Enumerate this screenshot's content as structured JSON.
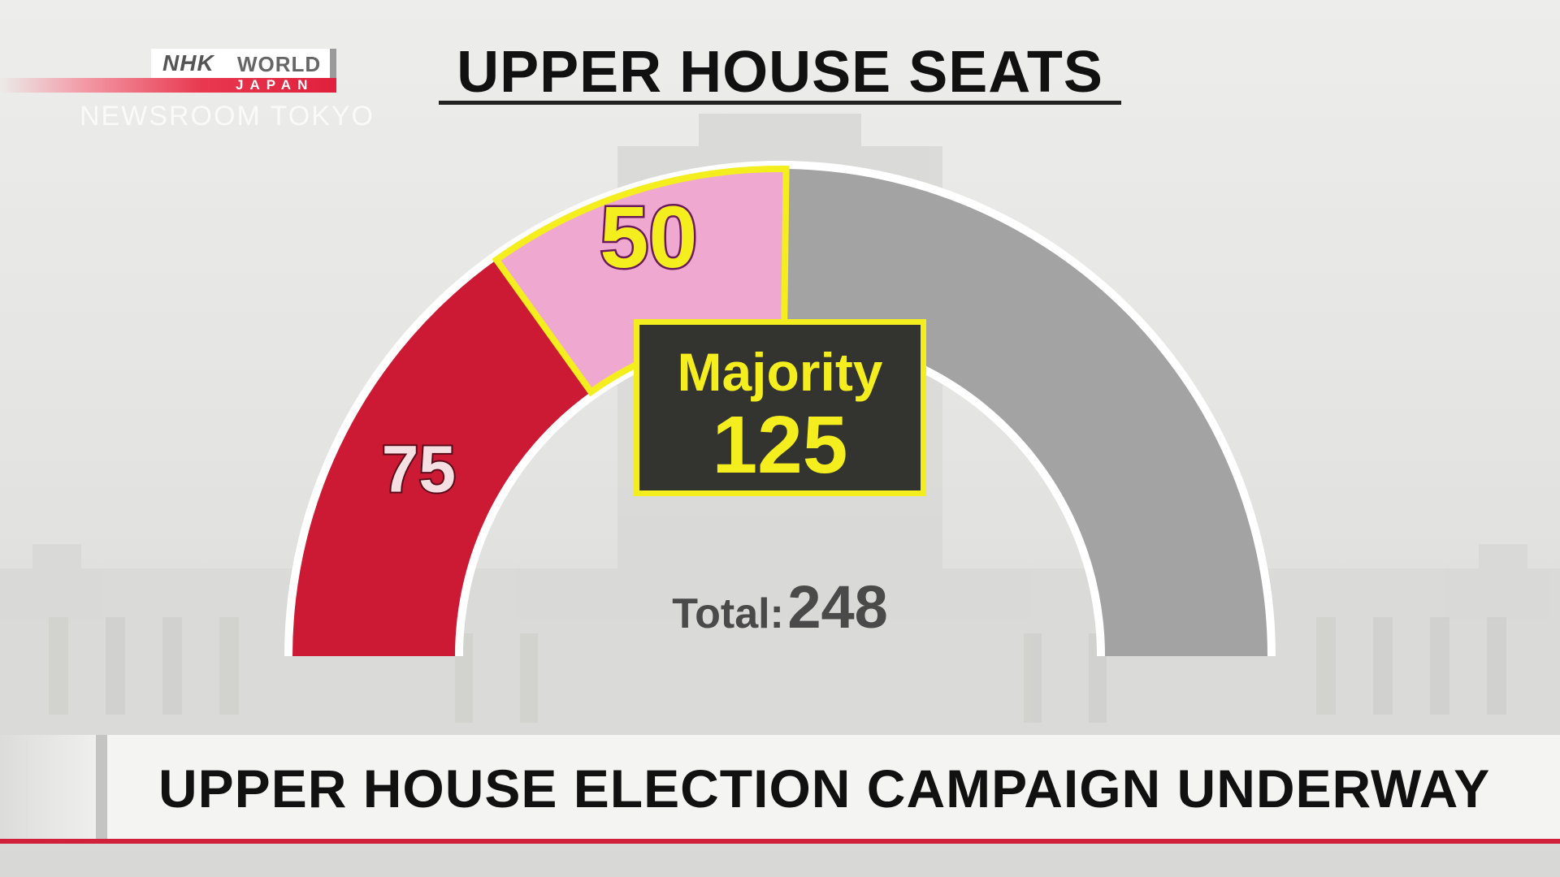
{
  "broadcaster": {
    "brand": "NHK",
    "world": "WORLD",
    "region": "JAPAN",
    "program": "NEWSROOM TOKYO"
  },
  "headline": "UPPER HOUSE ELECTION CAMPAIGN UNDERWAY",
  "colors": {
    "red": "#cc1a35",
    "pink": "#efa9d1",
    "gray": "#a3a3a3",
    "yellow": "#f5ee1e",
    "banner_rule": "#d0203a"
  },
  "chart_data": {
    "type": "pie",
    "subtype": "semicircle-parliament",
    "title": "UPPER HOUSE SEATS",
    "total": 248,
    "total_label": "Total:",
    "majority": 125,
    "majority_label": "Majority",
    "segments": [
      {
        "value": 75,
        "label": "75",
        "color": "#cc1a35"
      },
      {
        "value": 50,
        "label": "50",
        "color": "#efa9d1",
        "highlighted": true
      },
      {
        "value": 123,
        "label": "",
        "color": "#a3a3a3"
      }
    ]
  }
}
